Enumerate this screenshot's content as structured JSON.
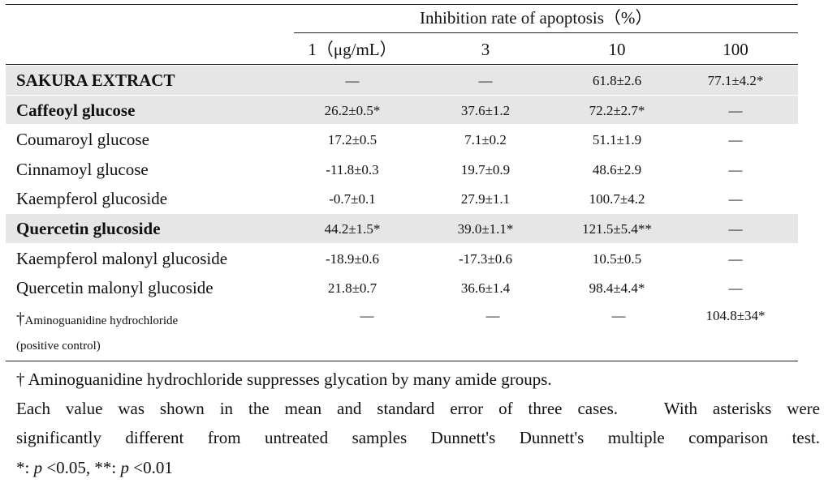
{
  "table": {
    "group_header": "Inhibition rate of apoptosis（%）",
    "columns": [
      "1（μg/mL）",
      "3",
      "10",
      "100"
    ],
    "rows": [
      {
        "label": "SAKURA EXTRACT",
        "bold": true,
        "shaded": true,
        "values": [
          "—",
          "—",
          "61.8±2.6",
          "77.1±4.2*"
        ]
      },
      {
        "label": "Caffeoyl glucose",
        "bold": true,
        "shaded": true,
        "values": [
          "26.2±0.5*",
          "37.6±1.2",
          "72.2±2.7*",
          "—"
        ]
      },
      {
        "label": "Coumaroyl glucose",
        "bold": false,
        "shaded": false,
        "values": [
          "17.2±0.5",
          "7.1±0.2",
          "51.1±1.9",
          "—"
        ]
      },
      {
        "label": "Cinnamoyl glucose",
        "bold": false,
        "shaded": false,
        "values": [
          "-11.8±0.3",
          "19.7±0.9",
          "48.6±2.9",
          "—"
        ]
      },
      {
        "label": "Kaempferol glucoside",
        "bold": false,
        "shaded": false,
        "values": [
          "-0.7±0.1",
          "27.9±1.1",
          "100.7±4.2",
          "—"
        ]
      },
      {
        "label": "Quercetin glucoside",
        "bold": true,
        "shaded": true,
        "values": [
          "44.2±1.5*",
          "39.0±1.1*",
          "121.5±5.4**",
          "—"
        ]
      },
      {
        "label": "Kaempferol malonyl glucoside",
        "bold": false,
        "shaded": false,
        "values": [
          "-18.9±0.6",
          "-17.3±0.6",
          "10.5±0.5",
          "—"
        ]
      },
      {
        "label": "Quercetin malonyl glucoside",
        "bold": false,
        "shaded": false,
        "values": [
          "21.8±0.7",
          "36.6±1.4",
          "98.4±4.4*",
          "—"
        ]
      }
    ],
    "control_row": {
      "dagger": "†",
      "label_line1": "Aminoguanidine hydrochloride",
      "label_line2": "(positive control)",
      "values": [
        "—",
        "—",
        "—",
        "104.8±34*"
      ]
    }
  },
  "footnotes": {
    "line1": "† Aminoguanidine hydrochloride suppresses glycation by many amide groups.",
    "line2": "Each value was shown in the mean and standard error of three cases.   With asterisks were",
    "line3": "significantly different from untreated samples Dunnett's Dunnett's multiple comparison test.",
    "line4_a": "*: ",
    "line4_p1": "p",
    "line4_b": " <0.05, **: ",
    "line4_p2": "p",
    "line4_c": " <0.01"
  }
}
